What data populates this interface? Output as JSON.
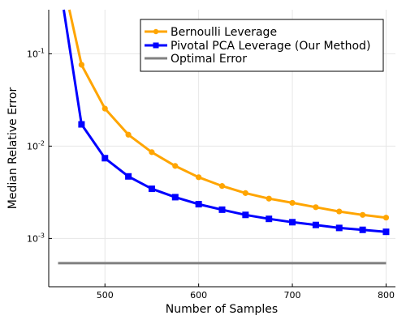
{
  "chart_data": {
    "type": "line",
    "xlabel": "Number of Samples",
    "ylabel": "Median Relative Error",
    "xlim": [
      440,
      810
    ],
    "ylim": [
      0.0003,
      0.3
    ],
    "yscale": "log",
    "grid": true,
    "legend_position": "top-right",
    "x_ticks": [
      500,
      600,
      700,
      800
    ],
    "x_tick_labels": [
      "500",
      "600",
      "700",
      "800"
    ],
    "y_ticks": [
      0.001,
      0.01,
      0.1
    ],
    "y_tick_labels": [
      {
        "base": "10",
        "exp": "-3"
      },
      {
        "base": "10",
        "exp": "-2"
      },
      {
        "base": "10",
        "exp": "-1"
      }
    ],
    "series": [
      {
        "name": "Bernoulli Leverage",
        "color": "#FFA500",
        "marker": "circle",
        "x": [
          475,
          500,
          525,
          550,
          575,
          600,
          625,
          650,
          675,
          700,
          725,
          750,
          775,
          800
        ],
        "y": [
          0.076,
          0.0255,
          0.0133,
          0.0086,
          0.0061,
          0.0046,
          0.0037,
          0.0031,
          0.0027,
          0.00243,
          0.00218,
          0.00196,
          0.0018,
          0.00168
        ],
        "lead_in": {
          "from": [
            462,
            0.3
          ],
          "to": [
            475,
            0.076
          ]
        }
      },
      {
        "name": "Pivotal PCA Leverage (Our Method)",
        "color": "#0000FF",
        "marker": "square",
        "x": [
          475,
          500,
          525,
          550,
          575,
          600,
          625,
          650,
          675,
          700,
          725,
          750,
          775,
          800
        ],
        "y": [
          0.0172,
          0.0074,
          0.0047,
          0.00345,
          0.0028,
          0.00235,
          0.00205,
          0.0018,
          0.00163,
          0.0015,
          0.0014,
          0.0013,
          0.00124,
          0.00118
        ],
        "lead_in": {
          "from": [
            456,
            0.3
          ],
          "to": [
            475,
            0.0172
          ]
        }
      },
      {
        "name": "Optimal Error",
        "color": "#808080",
        "marker": "none",
        "x": [
          450,
          800
        ],
        "y": [
          0.00054,
          0.00054
        ]
      }
    ]
  }
}
